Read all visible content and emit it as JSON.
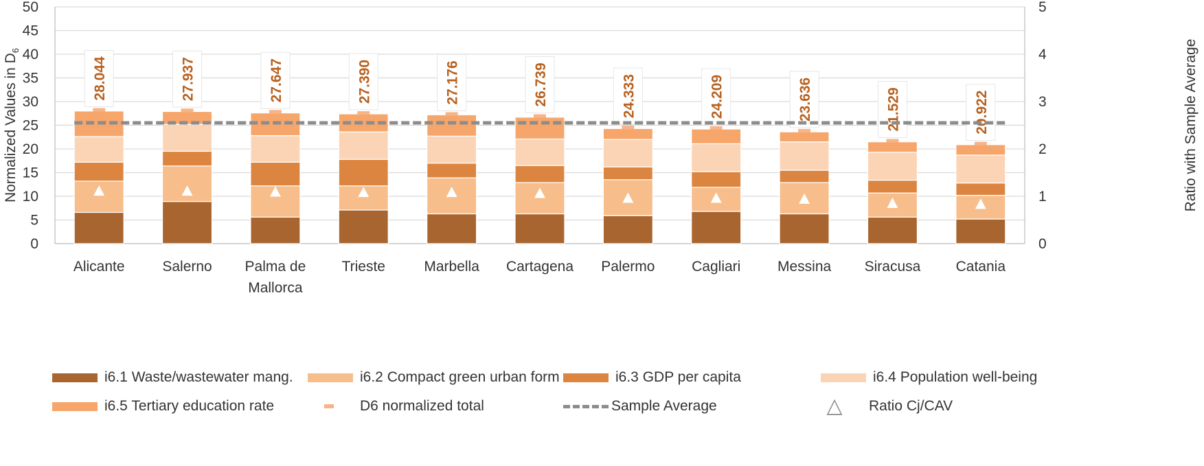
{
  "chart_data": {
    "type": "bar",
    "stacked": true,
    "categories": [
      "Alicante",
      "Salerno",
      "Palma de Mallorca",
      "Trieste",
      "Marbella",
      "Cartagena",
      "Palermo",
      "Cagliari",
      "Messina",
      "Siracusa",
      "Catania"
    ],
    "category_lines": [
      [
        "Alicante"
      ],
      [
        "Salerno"
      ],
      [
        "Palma de",
        "Mallorca"
      ],
      [
        "Trieste"
      ],
      [
        "Marbella"
      ],
      [
        "Cartagena"
      ],
      [
        "Palermo"
      ],
      [
        "Cagliari"
      ],
      [
        "Messina"
      ],
      [
        "Siracusa"
      ],
      [
        "Catania"
      ]
    ],
    "series": [
      {
        "name": "i6.1 Waste/wastewater mang.",
        "color": "#a9652f",
        "values": [
          6.6,
          8.9,
          5.6,
          7.1,
          6.3,
          6.3,
          5.9,
          6.8,
          6.3,
          5.6,
          5.2
        ]
      },
      {
        "name": "i6.2 Compact green urban form",
        "color": "#f7bd8b",
        "values": [
          6.6,
          7.5,
          6.6,
          5.1,
          7.6,
          6.6,
          7.6,
          5.1,
          6.6,
          5.1,
          5.0
        ]
      },
      {
        "name": "i6.3 GDP per capita",
        "color": "#dc8540",
        "values": [
          4.0,
          3.1,
          5.0,
          5.6,
          3.1,
          3.6,
          2.7,
          3.3,
          2.6,
          2.7,
          2.6
        ]
      },
      {
        "name": "i6.4 Population well-being",
        "color": "#fbd4b6",
        "values": [
          5.4,
          5.7,
          5.6,
          5.8,
          5.7,
          5.6,
          5.8,
          5.9,
          6.0,
          5.9,
          5.9
        ]
      },
      {
        "name": "i6.5 Tertiary education rate",
        "color": "#f6a66b",
        "values": [
          5.4,
          2.7,
          4.8,
          3.8,
          4.5,
          4.6,
          2.3,
          3.1,
          2.1,
          2.2,
          2.2
        ]
      }
    ],
    "totals": {
      "name": "D6 normalized total",
      "color": "#f6b489",
      "values": [
        28.044,
        27.937,
        27.647,
        27.39,
        27.176,
        26.739,
        24.333,
        24.209,
        23.636,
        21.529,
        20.922
      ]
    },
    "total_labels": [
      "28.044",
      "27.937",
      "27.647",
      "27.390",
      "27.176",
      "26.739",
      "24.333",
      "24.209",
      "23.636",
      "21.529",
      "20.922"
    ],
    "average": {
      "name": "Sample Average",
      "value": 25.5,
      "color": "#8c8c8c"
    },
    "ratio": {
      "name": "Ratio Cj/CAV",
      "values": [
        1.1,
        1.1,
        1.08,
        1.07,
        1.07,
        1.05,
        0.95,
        0.95,
        0.93,
        0.84,
        0.82
      ]
    },
    "ylabel": "Normalized Values in D",
    "ylabel_sub": "6",
    "y2label": "Ratio with Sample Average",
    "ylim": [
      0,
      50
    ],
    "y2lim": [
      0,
      5
    ],
    "yticks": [
      "0",
      "5",
      "10",
      "15",
      "20",
      "25",
      "30",
      "35",
      "40",
      "45",
      "50"
    ],
    "y2ticks": [
      "0",
      "1",
      "2",
      "3",
      "4",
      "5"
    ],
    "grid": true,
    "legend_position": "bottom",
    "label_color": "#b8611f"
  },
  "legend": {
    "items": [
      {
        "label": "i6.1 Waste/wastewater mang.",
        "kind": "swatch",
        "color": "#a9652f"
      },
      {
        "label": "i6.2 Compact green urban form",
        "kind": "swatch",
        "color": "#f7bd8b"
      },
      {
        "label": "i6.3 GDP per capita",
        "kind": "swatch",
        "color": "#dc8540"
      },
      {
        "label": "i6.4 Population well-being",
        "kind": "swatch",
        "color": "#fbd4b6"
      },
      {
        "label": "i6.5 Tertiary education rate",
        "kind": "swatch",
        "color": "#f6a66b"
      },
      {
        "label": "D6 normalized total",
        "kind": "small-swatch",
        "color": "#f6b489"
      },
      {
        "label": "Sample Average",
        "kind": "dash",
        "color": "#8c8c8c"
      },
      {
        "label": "Ratio Cj/CAV",
        "kind": "triangle",
        "icon": "triangle-outline-icon",
        "color": "#8c8c8c"
      }
    ]
  }
}
